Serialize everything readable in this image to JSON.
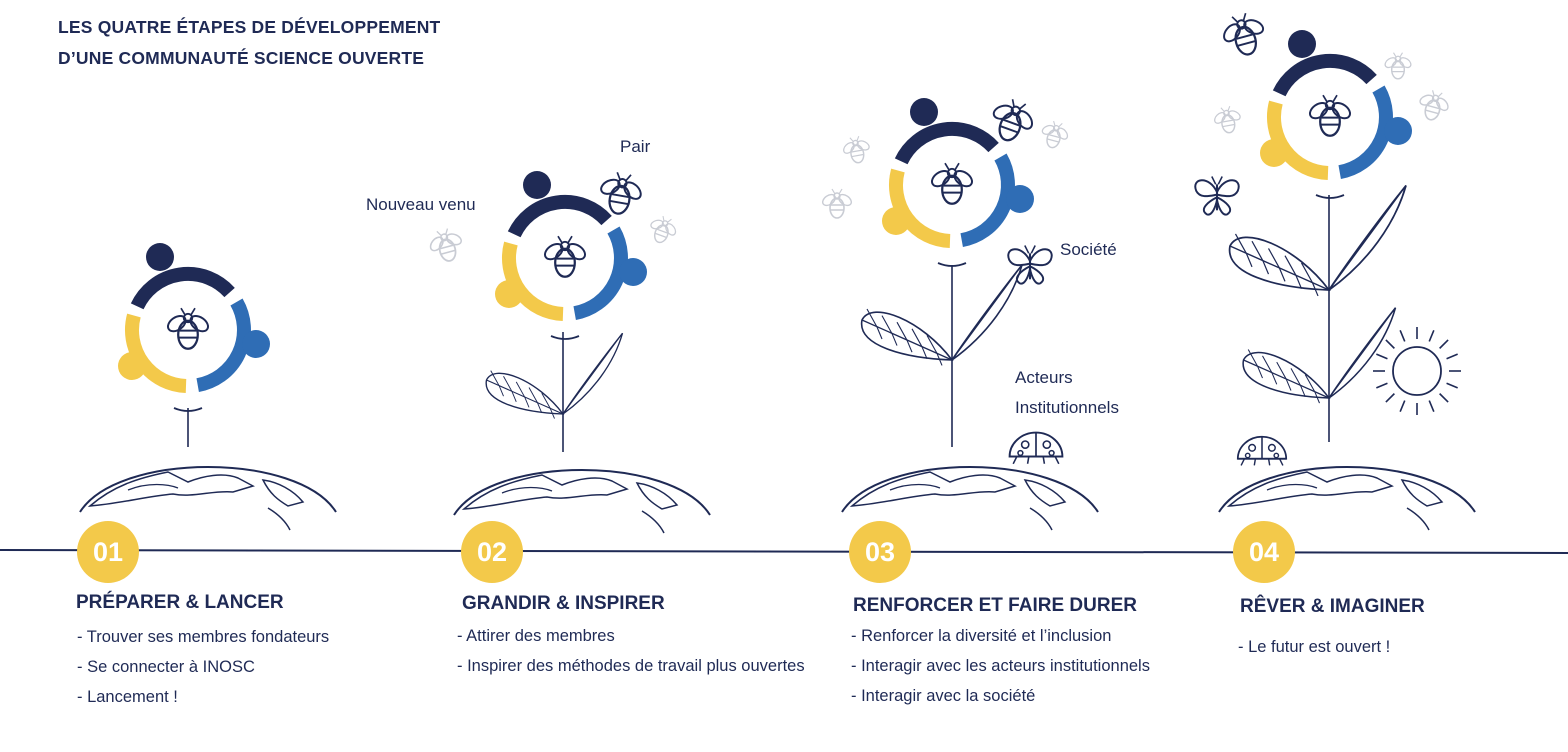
{
  "title": {
    "line1": "LES QUATRE ÉTAPES DE DÉVELOPPEMENT",
    "line2": "D’UNE COMMUNAUTÉ SCIENCE OUVERTE"
  },
  "colors": {
    "navy": "#1f2a55",
    "blue": "#2f6db5",
    "yellow": "#f3c94a",
    "grey": "#c9ccd4"
  },
  "labels": {
    "pair": "Pair",
    "newcomer": "Nouveau venu",
    "society": "Société",
    "actors_line1": "Acteurs",
    "actors_line2": "Institutionnels"
  },
  "stages": [
    {
      "number": "01",
      "title": "PRÉPARER & LANCER",
      "bullets": [
        "- Trouver ses membres fondateurs",
        "- Se connecter à INOSC",
        "- Lancement !"
      ]
    },
    {
      "number": "02",
      "title": "GRANDIR & INSPIRER",
      "bullets": [
        "- Attirer des membres",
        "- Inspirer des méthodes de travail plus ouvertes"
      ]
    },
    {
      "number": "03",
      "title": "RENFORCER ET FAIRE DURER",
      "bullets": [
        "- Renforcer la diversité et l’inclusion",
        "- Interagir avec les acteurs institutionnels",
        "- Interagir avec la société"
      ]
    },
    {
      "number": "04",
      "title": "RÊVER & IMAGINER",
      "bullets": [
        "- Le futur est ouvert !"
      ]
    }
  ],
  "icons": [
    "bee-icon",
    "butterfly-icon",
    "ladybug-icon",
    "sun-icon",
    "leaf-icon",
    "globe-icon",
    "community-ring-icon"
  ]
}
